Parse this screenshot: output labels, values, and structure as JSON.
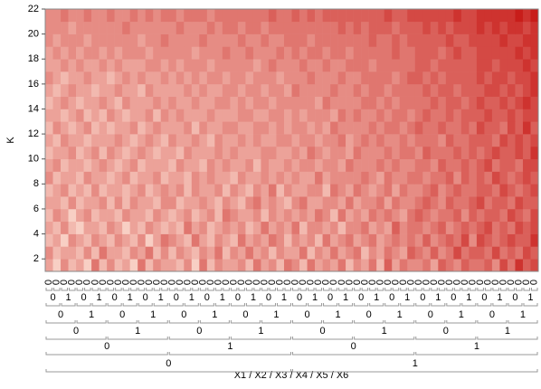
{
  "chart_data": {
    "type": "heatmap",
    "y_label": "K",
    "x_label": "X1 / X2 / X3 / X4 / X5 / X6",
    "ylim": [
      1,
      22
    ],
    "yticks": [
      2,
      4,
      6,
      8,
      10,
      12,
      14,
      16,
      18,
      20,
      22
    ],
    "zlim": [
      0,
      9
    ],
    "color_range": [
      "#fee5d9",
      "#c81d1a"
    ],
    "x_levels": [
      [
        "0",
        "0",
        "0",
        "0",
        "0",
        "0",
        "0",
        "0",
        "0",
        "0",
        "0",
        "0",
        "0",
        "0",
        "0",
        "0",
        "0",
        "0",
        "0",
        "0",
        "0",
        "0",
        "0",
        "0",
        "0",
        "0",
        "0",
        "0",
        "0",
        "0",
        "0",
        "0",
        "0",
        "0",
        "0",
        "0",
        "0",
        "0",
        "0",
        "0",
        "0",
        "0",
        "0",
        "0",
        "0",
        "0",
        "0",
        "0",
        "0",
        "0",
        "0",
        "0",
        "0",
        "0",
        "0",
        "0",
        "0",
        "0",
        "0",
        "0",
        "0",
        "0",
        "0",
        "0"
      ],
      [
        "0",
        "1",
        "0",
        "1",
        "0",
        "1",
        "0",
        "1",
        "0",
        "1",
        "0",
        "1",
        "0",
        "1",
        "0",
        "1",
        "0",
        "1",
        "0",
        "1",
        "0",
        "1",
        "0",
        "1",
        "0",
        "1",
        "0",
        "1",
        "0",
        "1",
        "0",
        "1"
      ],
      [
        "0",
        "1",
        "0",
        "1",
        "0",
        "1",
        "0",
        "1",
        "0",
        "1",
        "0",
        "1",
        "0",
        "1",
        "0",
        "1"
      ],
      [
        "0",
        "1",
        "0",
        "1",
        "0",
        "1",
        "0",
        "1"
      ],
      [
        "0",
        "1",
        "0",
        "1"
      ],
      [
        "0",
        "1"
      ]
    ],
    "z": [
      [
        3,
        1,
        4,
        2,
        3,
        1,
        5,
        2,
        4,
        2,
        3,
        1,
        5,
        2,
        4,
        3,
        3,
        2,
        4,
        1,
        5,
        2,
        4,
        3,
        3,
        4,
        2,
        5,
        3,
        4,
        2,
        5,
        4,
        2,
        5,
        3,
        4,
        3,
        5,
        2,
        4,
        3,
        5,
        2,
        6,
        3,
        5,
        4,
        4,
        5,
        3,
        6,
        5,
        4,
        6,
        5,
        5,
        6,
        4,
        7,
        5,
        8,
        6,
        7
      ],
      [
        4,
        2,
        3,
        3,
        2,
        4,
        2,
        5,
        3,
        3,
        2,
        4,
        3,
        5,
        2,
        4,
        2,
        4,
        3,
        2,
        4,
        3,
        5,
        2,
        4,
        3,
        5,
        3,
        4,
        2,
        4,
        3,
        3,
        5,
        2,
        4,
        3,
        5,
        3,
        4,
        5,
        2,
        4,
        3,
        5,
        4,
        3,
        6,
        5,
        4,
        6,
        4,
        5,
        7,
        5,
        6,
        6,
        5,
        7,
        5,
        6,
        5,
        7,
        6
      ],
      [
        2,
        3,
        1,
        4,
        3,
        2,
        4,
        3,
        2,
        4,
        3,
        2,
        4,
        1,
        3,
        5,
        4,
        3,
        2,
        5,
        3,
        2,
        4,
        3,
        2,
        5,
        3,
        4,
        3,
        5,
        4,
        2,
        4,
        3,
        4,
        2,
        5,
        3,
        4,
        5,
        3,
        4,
        5,
        3,
        4,
        5,
        4,
        5,
        4,
        6,
        4,
        5,
        6,
        5,
        7,
        4,
        7,
        6,
        5,
        6,
        7,
        6,
        6,
        8
      ],
      [
        3,
        2,
        4,
        2,
        1,
        3,
        3,
        2,
        4,
        3,
        1,
        3,
        2,
        4,
        3,
        2,
        3,
        2,
        5,
        3,
        4,
        2,
        3,
        4,
        3,
        4,
        2,
        3,
        5,
        3,
        4,
        3,
        5,
        2,
        4,
        4,
        3,
        4,
        2,
        4,
        4,
        5,
        3,
        4,
        3,
        6,
        4,
        5,
        5,
        4,
        5,
        6,
        4,
        5,
        6,
        5,
        6,
        7,
        5,
        6,
        5,
        7,
        6,
        7
      ],
      [
        2,
        4,
        3,
        1,
        3,
        4,
        2,
        3,
        3,
        2,
        4,
        3,
        3,
        2,
        4,
        3,
        2,
        3,
        4,
        2,
        3,
        4,
        2,
        5,
        4,
        3,
        3,
        4,
        2,
        4,
        3,
        4,
        3,
        4,
        3,
        5,
        4,
        2,
        5,
        3,
        4,
        3,
        5,
        4,
        5,
        4,
        3,
        5,
        6,
        5,
        4,
        5,
        5,
        6,
        4,
        6,
        5,
        6,
        6,
        5,
        7,
        6,
        5,
        7
      ],
      [
        3,
        3,
        2,
        4,
        2,
        3,
        3,
        4,
        2,
        4,
        2,
        4,
        3,
        3,
        2,
        4,
        4,
        2,
        3,
        3,
        4,
        3,
        2,
        4,
        3,
        2,
        4,
        5,
        3,
        4,
        3,
        2,
        4,
        5,
        3,
        3,
        4,
        4,
        3,
        5,
        3,
        4,
        4,
        5,
        3,
        5,
        4,
        4,
        5,
        6,
        5,
        4,
        6,
        5,
        5,
        6,
        7,
        5,
        6,
        6,
        5,
        7,
        6,
        6
      ],
      [
        2,
        3,
        4,
        2,
        3,
        2,
        4,
        2,
        3,
        3,
        2,
        3,
        4,
        2,
        3,
        4,
        3,
        4,
        2,
        4,
        3,
        3,
        4,
        2,
        4,
        3,
        2,
        4,
        3,
        5,
        2,
        4,
        3,
        3,
        4,
        4,
        2,
        5,
        4,
        3,
        5,
        4,
        3,
        4,
        5,
        3,
        5,
        4,
        4,
        5,
        6,
        4,
        5,
        6,
        5,
        5,
        6,
        6,
        5,
        7,
        6,
        5,
        6,
        7
      ],
      [
        4,
        2,
        3,
        3,
        2,
        4,
        3,
        3,
        2,
        3,
        4,
        2,
        3,
        3,
        4,
        2,
        3,
        3,
        2,
        4,
        3,
        4,
        3,
        3,
        2,
        4,
        3,
        3,
        4,
        3,
        4,
        3,
        4,
        3,
        3,
        5,
        3,
        4,
        4,
        4,
        4,
        5,
        4,
        3,
        5,
        4,
        4,
        5,
        5,
        4,
        5,
        5,
        6,
        4,
        6,
        5,
        6,
        5,
        7,
        6,
        5,
        6,
        7,
        6
      ],
      [
        3,
        4,
        2,
        3,
        3,
        2,
        3,
        4,
        3,
        2,
        3,
        4,
        2,
        3,
        3,
        3,
        2,
        4,
        3,
        3,
        2,
        4,
        3,
        4,
        3,
        3,
        4,
        2,
        4,
        3,
        3,
        4,
        3,
        4,
        4,
        3,
        4,
        4,
        3,
        5,
        4,
        4,
        4,
        5,
        4,
        5,
        4,
        4,
        5,
        5,
        4,
        6,
        5,
        5,
        6,
        5,
        6,
        7,
        5,
        6,
        6,
        5,
        7,
        7
      ],
      [
        2,
        3,
        3,
        4,
        2,
        3,
        4,
        2,
        4,
        3,
        2,
        3,
        4,
        3,
        2,
        3,
        3,
        2,
        4,
        3,
        3,
        3,
        4,
        3,
        4,
        3,
        3,
        3,
        4,
        4,
        3,
        3,
        4,
        3,
        5,
        4,
        3,
        4,
        4,
        3,
        5,
        4,
        4,
        4,
        5,
        4,
        5,
        5,
        4,
        6,
        5,
        5,
        5,
        6,
        5,
        6,
        5,
        6,
        7,
        6,
        6,
        7,
        6,
        8
      ],
      [
        3,
        2,
        4,
        3,
        3,
        2,
        3,
        3,
        3,
        4,
        3,
        2,
        3,
        4,
        3,
        2,
        4,
        3,
        3,
        4,
        3,
        2,
        4,
        3,
        3,
        4,
        3,
        4,
        3,
        3,
        4,
        4,
        3,
        4,
        4,
        3,
        4,
        4,
        5,
        3,
        4,
        5,
        4,
        5,
        4,
        4,
        5,
        4,
        5,
        5,
        5,
        4,
        6,
        5,
        5,
        6,
        6,
        6,
        5,
        7,
        6,
        7,
        6,
        7
      ],
      [
        2,
        4,
        3,
        2,
        3,
        4,
        2,
        3,
        2,
        3,
        3,
        4,
        2,
        3,
        4,
        3,
        3,
        3,
        4,
        2,
        4,
        3,
        3,
        4,
        4,
        3,
        3,
        4,
        4,
        3,
        4,
        3,
        4,
        4,
        3,
        4,
        3,
        5,
        4,
        4,
        4,
        4,
        5,
        4,
        5,
        5,
        4,
        5,
        6,
        5,
        5,
        6,
        5,
        5,
        6,
        5,
        7,
        6,
        6,
        5,
        7,
        6,
        8,
        6
      ],
      [
        3,
        3,
        2,
        3,
        4,
        2,
        3,
        2,
        4,
        3,
        2,
        3,
        3,
        4,
        2,
        4,
        3,
        4,
        3,
        3,
        3,
        4,
        3,
        3,
        3,
        4,
        4,
        3,
        3,
        4,
        4,
        3,
        4,
        3,
        4,
        4,
        4,
        3,
        5,
        4,
        5,
        4,
        4,
        5,
        4,
        5,
        5,
        4,
        5,
        6,
        5,
        5,
        6,
        5,
        6,
        6,
        6,
        7,
        6,
        6,
        7,
        6,
        7,
        7
      ],
      [
        2,
        3,
        4,
        3,
        2,
        3,
        3,
        4,
        3,
        2,
        4,
        3,
        3,
        3,
        4,
        3,
        4,
        3,
        3,
        4,
        3,
        3,
        4,
        4,
        3,
        4,
        3,
        4,
        4,
        3,
        4,
        4,
        4,
        4,
        4,
        3,
        5,
        4,
        4,
        4,
        4,
        5,
        5,
        4,
        5,
        4,
        5,
        5,
        5,
        5,
        6,
        5,
        6,
        6,
        5,
        6,
        7,
        6,
        6,
        7,
        6,
        7,
        8,
        7
      ],
      [
        3,
        2,
        3,
        4,
        3,
        3,
        2,
        3,
        3,
        4,
        3,
        3,
        2,
        4,
        3,
        3,
        3,
        3,
        4,
        3,
        4,
        3,
        3,
        4,
        4,
        3,
        4,
        4,
        3,
        4,
        4,
        3,
        5,
        4,
        4,
        4,
        4,
        5,
        4,
        4,
        5,
        4,
        5,
        5,
        4,
        5,
        5,
        5,
        5,
        6,
        5,
        6,
        6,
        5,
        6,
        6,
        6,
        7,
        7,
        6,
        7,
        6,
        7,
        8
      ],
      [
        4,
        3,
        2,
        3,
        3,
        4,
        3,
        3,
        2,
        3,
        4,
        3,
        4,
        3,
        3,
        4,
        3,
        4,
        3,
        4,
        3,
        4,
        4,
        3,
        4,
        4,
        3,
        4,
        4,
        4,
        3,
        4,
        4,
        4,
        5,
        4,
        4,
        4,
        5,
        4,
        4,
        5,
        5,
        5,
        5,
        4,
        5,
        6,
        6,
        5,
        6,
        5,
        6,
        6,
        6,
        6,
        7,
        6,
        7,
        7,
        6,
        7,
        7,
        8
      ],
      [
        3,
        3,
        4,
        3,
        4,
        3,
        3,
        4,
        3,
        4,
        3,
        3,
        3,
        4,
        4,
        3,
        4,
        3,
        4,
        4,
        4,
        3,
        4,
        4,
        4,
        4,
        4,
        3,
        4,
        5,
        4,
        4,
        4,
        5,
        4,
        4,
        5,
        4,
        4,
        5,
        5,
        5,
        4,
        5,
        5,
        5,
        5,
        5,
        6,
        6,
        5,
        6,
        6,
        6,
        6,
        6,
        7,
        7,
        6,
        7,
        7,
        7,
        8,
        7
      ],
      [
        3,
        4,
        3,
        4,
        3,
        4,
        4,
        3,
        4,
        3,
        4,
        4,
        4,
        3,
        4,
        4,
        4,
        4,
        4,
        3,
        4,
        4,
        4,
        5,
        4,
        4,
        5,
        4,
        4,
        4,
        5,
        4,
        5,
        4,
        5,
        5,
        4,
        5,
        5,
        4,
        5,
        5,
        5,
        5,
        5,
        6,
        5,
        5,
        6,
        6,
        6,
        5,
        6,
        7,
        6,
        6,
        7,
        7,
        7,
        7,
        7,
        8,
        7,
        8
      ],
      [
        4,
        3,
        4,
        4,
        4,
        3,
        4,
        4,
        4,
        4,
        4,
        4,
        3,
        4,
        4,
        5,
        4,
        4,
        4,
        4,
        5,
        4,
        4,
        4,
        4,
        5,
        4,
        4,
        5,
        4,
        4,
        5,
        5,
        5,
        4,
        5,
        5,
        5,
        5,
        5,
        5,
        5,
        6,
        5,
        5,
        6,
        5,
        6,
        6,
        6,
        6,
        6,
        7,
        6,
        6,
        7,
        7,
        7,
        7,
        8,
        7,
        7,
        8,
        8
      ],
      [
        4,
        4,
        4,
        3,
        4,
        4,
        4,
        4,
        4,
        4,
        5,
        4,
        4,
        4,
        4,
        4,
        4,
        5,
        4,
        4,
        4,
        5,
        4,
        5,
        5,
        4,
        5,
        5,
        4,
        5,
        5,
        5,
        5,
        5,
        5,
        5,
        5,
        5,
        6,
        5,
        6,
        5,
        6,
        6,
        6,
        5,
        6,
        6,
        6,
        7,
        6,
        7,
        6,
        7,
        7,
        7,
        8,
        7,
        8,
        7,
        8,
        8,
        7,
        8
      ],
      [
        4,
        4,
        5,
        4,
        4,
        5,
        4,
        4,
        5,
        4,
        4,
        5,
        4,
        5,
        4,
        5,
        5,
        4,
        5,
        5,
        5,
        4,
        5,
        5,
        5,
        5,
        5,
        5,
        5,
        6,
        5,
        5,
        6,
        5,
        6,
        5,
        6,
        6,
        6,
        6,
        6,
        6,
        6,
        6,
        7,
        6,
        6,
        7,
        7,
        7,
        7,
        7,
        7,
        8,
        7,
        7,
        8,
        8,
        8,
        8,
        8,
        9,
        8,
        9
      ]
    ]
  }
}
